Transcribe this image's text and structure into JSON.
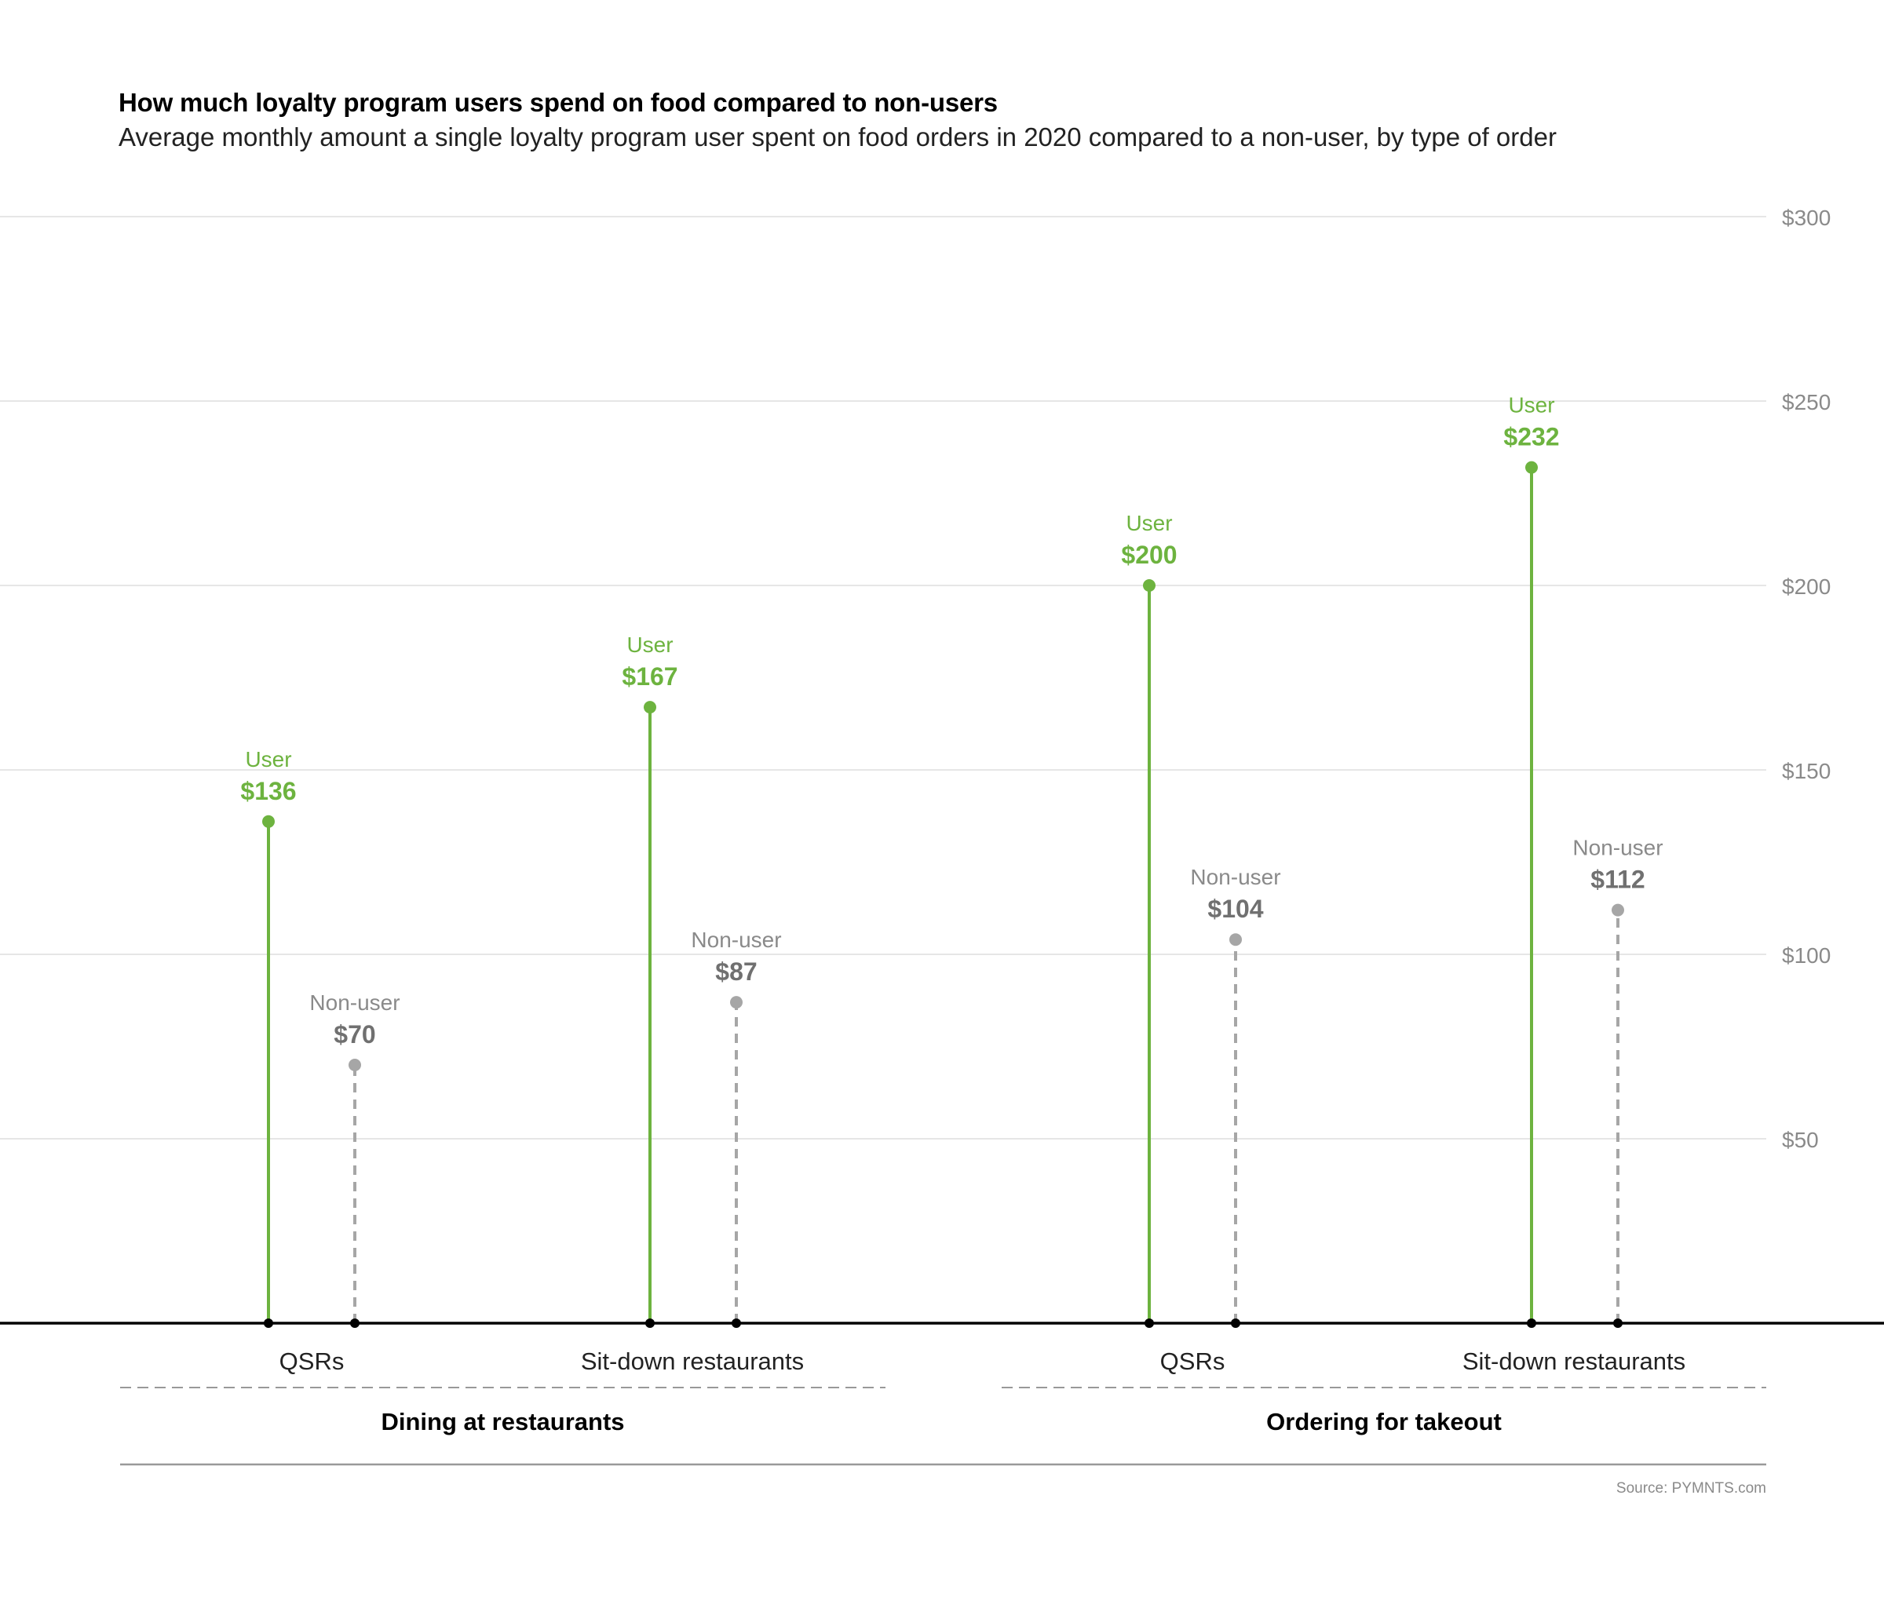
{
  "title": "How much loyalty program users spend on food compared to non-users",
  "subtitle": "Average monthly amount a single loyalty program user spent on food orders in 2020 compared to a non-user, by type of order",
  "source": "Source: PYMNTS.com",
  "colors": {
    "user": "#6db33f",
    "non_user": "#a6a6a6",
    "non_user_value": "#707070",
    "grid": "#dddddd",
    "axis": "#000000",
    "tick_label": "#8a8a8a",
    "group_divider": "#999999"
  },
  "chart_data": {
    "type": "lollipop",
    "title": "How much loyalty program users spend on food compared to non-users",
    "ylim": [
      0,
      300
    ],
    "y_ticks": [
      50,
      100,
      150,
      200,
      250,
      300
    ],
    "y_tick_labels": [
      "$50",
      "$100",
      "$150",
      "$200",
      "$250",
      "$300"
    ],
    "y_axis_position": "right",
    "grid": true,
    "series_labels": {
      "user": "User",
      "non_user": "Non-user"
    },
    "groups": [
      {
        "name": "Dining at restaurants",
        "categories": [
          {
            "name": "QSRs",
            "user": 136,
            "non_user": 70,
            "user_label": "$136",
            "non_user_label": "$70"
          },
          {
            "name": "Sit-down restaurants",
            "user": 167,
            "non_user": 87,
            "user_label": "$167",
            "non_user_label": "$87"
          }
        ]
      },
      {
        "name": "Ordering for takeout",
        "categories": [
          {
            "name": "QSRs",
            "user": 200,
            "non_user": 104,
            "user_label": "$200",
            "non_user_label": "$104"
          },
          {
            "name": "Sit-down restaurants",
            "user": 232,
            "non_user": 112,
            "user_label": "$232",
            "non_user_label": "$112"
          }
        ]
      }
    ]
  }
}
